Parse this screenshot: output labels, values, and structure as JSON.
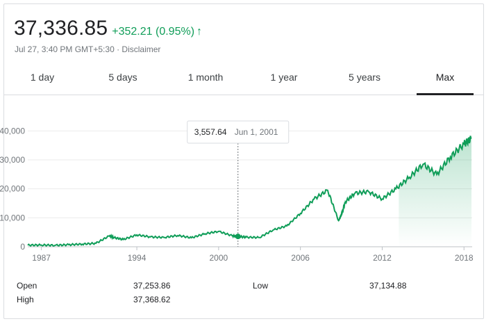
{
  "quote": {
    "price": "37,336.85",
    "change": "+352.21 (0.95%)",
    "arrow": "↑",
    "timestamp": "Jul 27, 3:40 PM GMT+5:30 · Disclaimer"
  },
  "tabs": [
    {
      "label": "1 day"
    },
    {
      "label": "5 days"
    },
    {
      "label": "1 month"
    },
    {
      "label": "1 year"
    },
    {
      "label": "5 years"
    },
    {
      "label": "Max"
    }
  ],
  "active_tab": "Max",
  "tooltip": {
    "value": "3,557.64",
    "date": "Jun 1, 2001"
  },
  "stats": {
    "open_label": "Open",
    "open_value": "37,253.86",
    "high_label": "High",
    "high_value": "37,368.62",
    "low_label": "Low",
    "low_value": "37,134.88"
  },
  "colors": {
    "line": "#0f9d58",
    "up": "#0f9d58"
  },
  "chart_data": {
    "type": "area",
    "x": [
      1986,
      1987,
      1988,
      1989,
      1990,
      1991,
      1992,
      1992.3,
      1993,
      1994,
      1995,
      1996,
      1997,
      1998,
      1999,
      2000,
      2001,
      2001.42,
      2002,
      2003,
      2004,
      2005,
      2006,
      2007,
      2008,
      2008.8,
      2009,
      2009.3,
      2010,
      2011,
      2012,
      2013,
      2014,
      2015,
      2016,
      2017,
      2018,
      2018.55
    ],
    "values": [
      550,
      600,
      500,
      700,
      900,
      1200,
      3800,
      3200,
      2500,
      4100,
      3400,
      3200,
      3900,
      3100,
      4500,
      5300,
      3800,
      3557.64,
      3300,
      3200,
      5800,
      7200,
      11500,
      16500,
      19500,
      9000,
      11000,
      15500,
      18500,
      19000,
      16500,
      20000,
      24000,
      28500,
      25000,
      31000,
      35500,
      37336.85
    ],
    "xlim": [
      1986,
      2018.6
    ],
    "ylim": [
      0,
      42000
    ],
    "x_ticks": [
      "1987",
      "1994",
      "2000",
      "2006",
      "2012",
      "2018"
    ],
    "x_tick_values": [
      1987,
      1994,
      2000,
      2006,
      2012,
      2018
    ],
    "y_ticks": [
      "0",
      "10,000",
      "20,000",
      "30,000",
      "40,000"
    ],
    "y_tick_values": [
      0,
      10000,
      20000,
      30000,
      40000
    ],
    "grid": true,
    "highlight_x": 2001.42,
    "highlight_y": 3557.64
  }
}
